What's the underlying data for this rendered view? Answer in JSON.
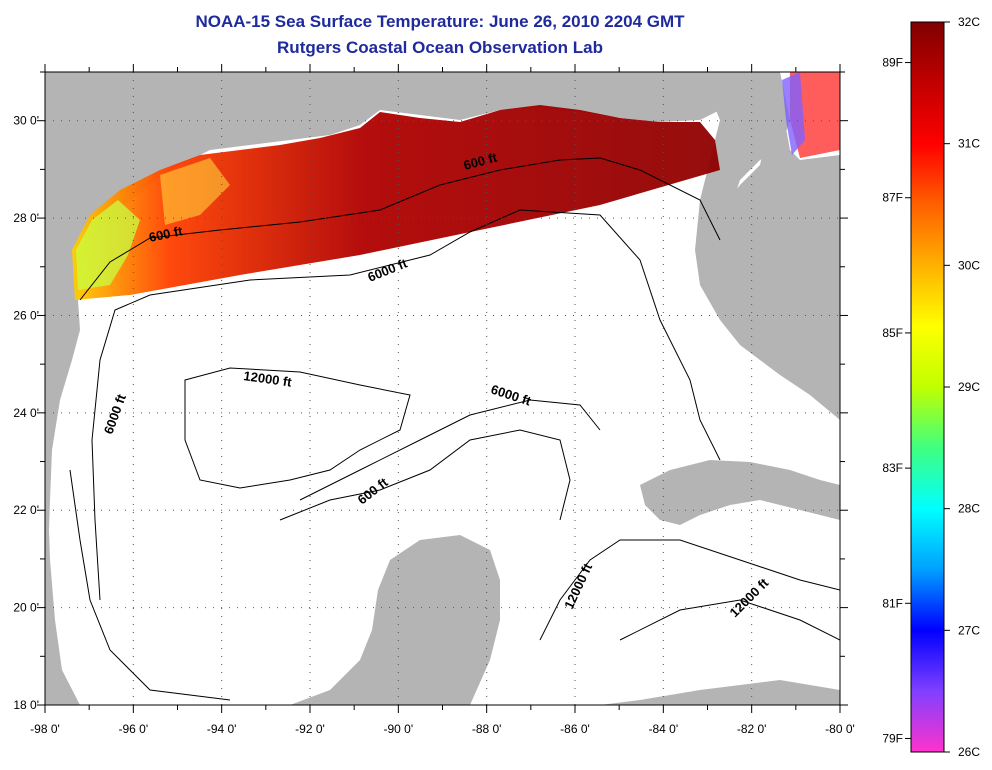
{
  "header": {
    "title": "NOAA-15 Sea Surface Temperature:  June 26, 2010 2204 GMT",
    "subtitle": "Rutgers Coastal Ocean Observation Lab"
  },
  "map": {
    "lon_range": [
      -98,
      -80
    ],
    "lat_range": [
      18,
      31
    ],
    "x_ticks": [
      "-98 0'",
      "-96 0'",
      "-94 0'",
      "-92 0'",
      "-90 0'",
      "-88 0'",
      "-86 0'",
      "-84 0'",
      "-82 0'",
      "-80 0'"
    ],
    "y_ticks": [
      "18 0'",
      "20 0'",
      "22 0'",
      "24 0'",
      "26 0'",
      "28 0'",
      "30 0'"
    ],
    "grid": "dotted",
    "land_color": "#b4b4b4",
    "ocean_color": "#ffffff",
    "contour_labels": [
      "600 ft",
      "600 ft",
      "6000 ft",
      "12000 ft",
      "6000 ft",
      "6000 ft",
      "600 ft",
      "12000 ft",
      "12000 ft"
    ]
  },
  "colorbar": {
    "celsius_labels": [
      "32C",
      "31C",
      "30C",
      "29C",
      "28C",
      "27C",
      "26C"
    ],
    "fahrenheit_labels": [
      "89F",
      "87F",
      "85F",
      "83F",
      "81F",
      "79F"
    ],
    "range_c": [
      26,
      32
    ],
    "colors": [
      "#ff33cc",
      "#8040ff",
      "#0000ff",
      "#00a0ff",
      "#00ffff",
      "#40ff80",
      "#c0ff00",
      "#ffff00",
      "#ffb000",
      "#ff6000",
      "#ff0000",
      "#c00000",
      "#800000"
    ]
  }
}
